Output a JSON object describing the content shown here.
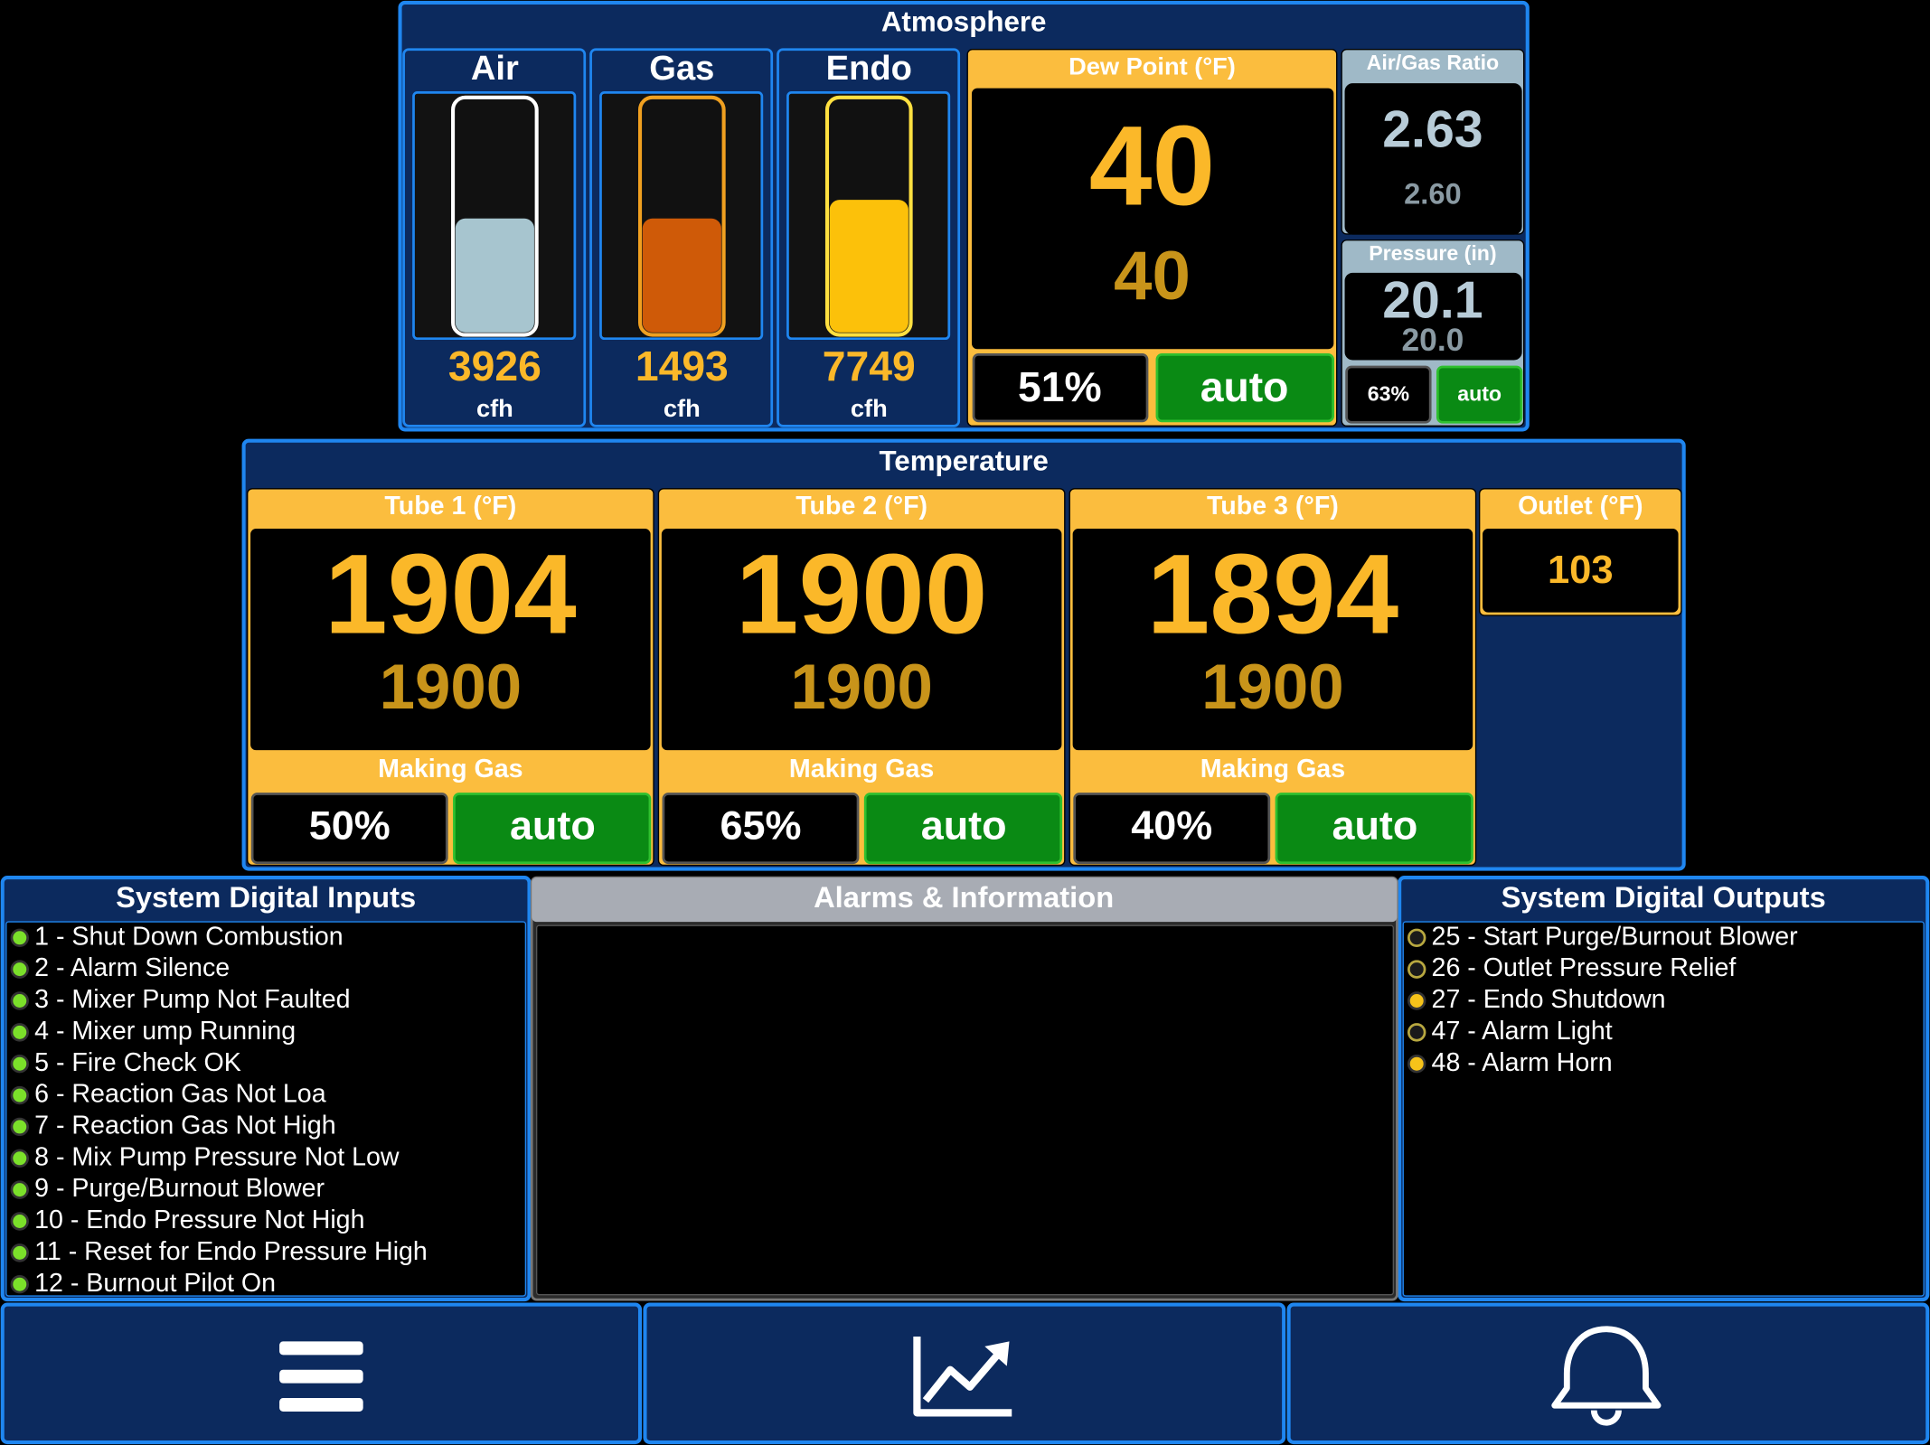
{
  "atmosphere": {
    "title": "Atmosphere",
    "gauges": [
      {
        "label": "Air",
        "value": 3926,
        "unit": "cfh",
        "fill_percent": 49
      },
      {
        "label": "Gas",
        "value": 1493,
        "unit": "cfh",
        "fill_percent": 49
      },
      {
        "label": "Endo",
        "value": 7749,
        "unit": "cfh",
        "fill_percent": 57
      }
    ],
    "dew_point": {
      "title": "Dew Point (°F)",
      "value": 40,
      "setpoint": 40,
      "output": "51%",
      "mode": "auto"
    },
    "air_gas_ratio": {
      "title": "Air/Gas Ratio",
      "value": "2.63",
      "setpoint": "2.60"
    },
    "pressure": {
      "title": "Pressure (in)",
      "value": "20.1",
      "setpoint": "20.0",
      "output": "63%",
      "mode": "auto"
    }
  },
  "temperature": {
    "title": "Temperature",
    "tubes": [
      {
        "title": "Tube 1 (°F)",
        "value": 1904,
        "setpoint": 1900,
        "status": "Making Gas",
        "output": "50%",
        "mode": "auto"
      },
      {
        "title": "Tube 2 (°F)",
        "value": 1900,
        "setpoint": 1900,
        "status": "Making Gas",
        "output": "65%",
        "mode": "auto"
      },
      {
        "title": "Tube 3 (°F)",
        "value": 1894,
        "setpoint": 1900,
        "status": "Making Gas",
        "output": "40%",
        "mode": "auto"
      }
    ],
    "outlet": {
      "title": "Outlet (°F)",
      "value": 103
    }
  },
  "inputs": {
    "title": "System Digital Inputs",
    "items": [
      {
        "label": "1 - Shut Down Combustion",
        "state": "on"
      },
      {
        "label": "2 - Alarm Silence",
        "state": "on"
      },
      {
        "label": "3 - Mixer Pump Not Faulted",
        "state": "on"
      },
      {
        "label": "4 - Mixer ump Running",
        "state": "on"
      },
      {
        "label": "5 - Fire Check OK",
        "state": "on"
      },
      {
        "label": "6 - Reaction Gas Not Loa",
        "state": "on"
      },
      {
        "label": "7 - Reaction Gas Not High",
        "state": "on"
      },
      {
        "label": "8 - Mix Pump Pressure Not Low",
        "state": "on"
      },
      {
        "label": "9 - Purge/Burnout Blower",
        "state": "on"
      },
      {
        "label": "10 - Endo Pressure Not High",
        "state": "on"
      },
      {
        "label": "11 - Reset for Endo Pressure High",
        "state": "on"
      },
      {
        "label": "12 - Burnout Pilot On",
        "state": "on"
      }
    ]
  },
  "alarms": {
    "title": "Alarms & Information"
  },
  "outputs": {
    "title": "System Digital Outputs",
    "items": [
      {
        "label": "25 - Start Purge/Burnout Blower",
        "state": "off"
      },
      {
        "label": "26 - Outlet Pressure Relief",
        "state": "off"
      },
      {
        "label": "27 - Endo Shutdown",
        "state": "on"
      },
      {
        "label": "47 - Alarm Light",
        "state": "off"
      },
      {
        "label": "48 - Alarm Horn",
        "state": "on"
      }
    ]
  }
}
